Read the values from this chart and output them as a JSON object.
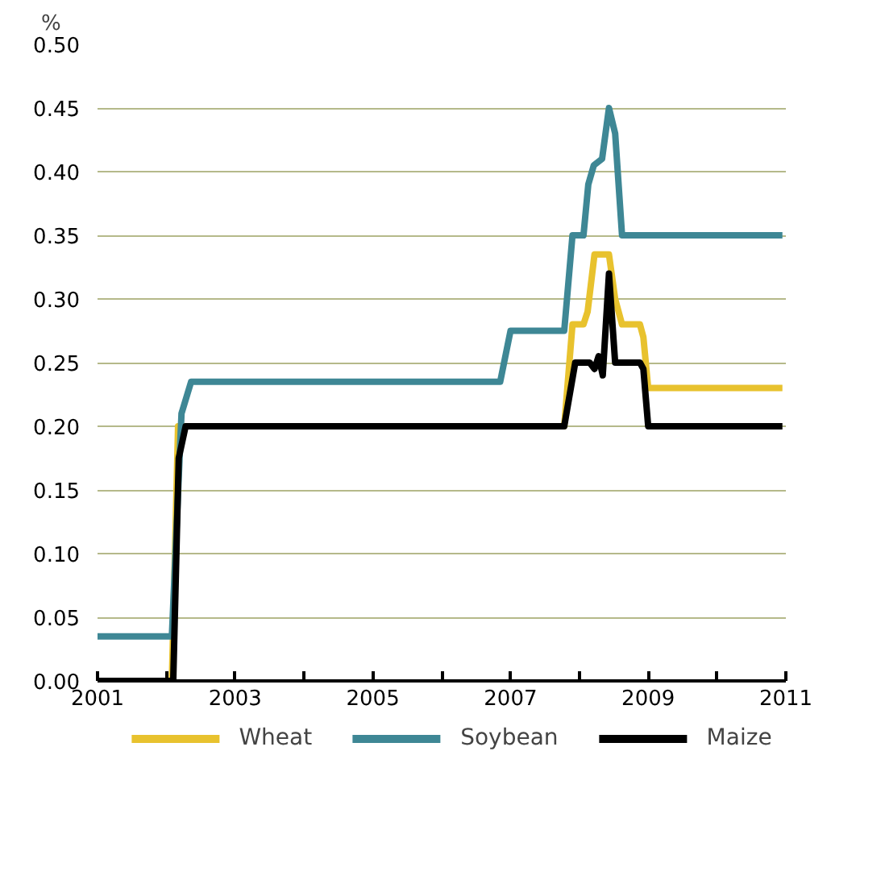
{
  "chart_data": {
    "type": "line",
    "ylabel": "%",
    "xlim": [
      2001,
      2011
    ],
    "ylim": [
      0,
      0.5
    ],
    "xticks": [
      2001,
      {
        "value": 2002,
        "label": null
      },
      2003,
      {
        "value": 2004,
        "label": null
      },
      2005,
      {
        "value": 2006,
        "label": null
      },
      2007,
      {
        "value": 2008,
        "label": null
      },
      2009,
      {
        "value": 2010,
        "label": null
      },
      2011
    ],
    "yticks": [
      {
        "value": 0,
        "label": "0.00"
      },
      {
        "value": 0.05,
        "label": "0.05"
      },
      {
        "value": 0.1,
        "label": "0.10"
      },
      {
        "value": 0.15,
        "label": "0.15"
      },
      {
        "value": 0.2,
        "label": "0.20"
      },
      {
        "value": 0.25,
        "label": "0.25"
      },
      {
        "value": 0.3,
        "label": "0.30"
      },
      {
        "value": 0.35,
        "label": "0.35"
      },
      {
        "value": 0.4,
        "label": "0.40"
      },
      {
        "value": 0.45,
        "label": "0.45"
      },
      {
        "value": 0.5,
        "label": "0.50"
      }
    ],
    "grid": "y",
    "legend": "bottom",
    "line_style": "solid",
    "marker": "none",
    "series": [
      {
        "name": "Wheat",
        "color": "#e8c22e",
        "x": [
          2001,
          2002.08,
          2002.17,
          2007.78,
          2007.9,
          2008.06,
          2008.12,
          2008.22,
          2008.43,
          2008.52,
          2008.62,
          2008.88,
          2008.93,
          2009.0,
          2010.95
        ],
        "values": [
          0,
          0,
          0.2,
          0.2,
          0.28,
          0.28,
          0.29,
          0.335,
          0.335,
          0.3,
          0.28,
          0.28,
          0.27,
          0.23,
          0.23
        ]
      },
      {
        "name": "Soybean",
        "color": "#3e8795",
        "x": [
          2001,
          2002.08,
          2002.22,
          2002.36,
          2006.85,
          2007.0,
          2007.78,
          2007.9,
          2008.06,
          2008.13,
          2008.21,
          2008.33,
          2008.43,
          2008.52,
          2008.62,
          2010.95
        ],
        "values": [
          0.035,
          0.035,
          0.21,
          0.235,
          0.235,
          0.275,
          0.275,
          0.35,
          0.35,
          0.39,
          0.405,
          0.41,
          0.45,
          0.43,
          0.35,
          0.35
        ]
      },
      {
        "name": "Maize",
        "color": "#000000",
        "x": [
          2001,
          2002.1,
          2002.18,
          2002.28,
          2007.78,
          2007.94,
          2008.15,
          2008.22,
          2008.28,
          2008.34,
          2008.43,
          2008.52,
          2008.88,
          2008.93,
          2009.0,
          2010.95
        ],
        "values": [
          0,
          0,
          0.175,
          0.2,
          0.2,
          0.25,
          0.25,
          0.245,
          0.255,
          0.24,
          0.32,
          0.25,
          0.25,
          0.245,
          0.2,
          0.2
        ]
      }
    ]
  }
}
